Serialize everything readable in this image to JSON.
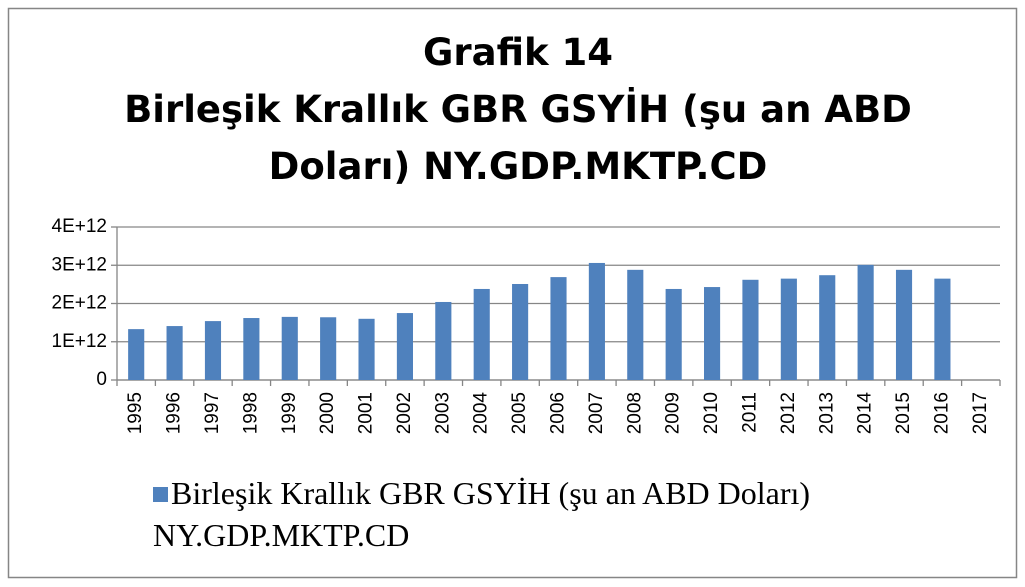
{
  "chart_data": {
    "type": "bar",
    "title": "Grafik 14",
    "subtitle": "Birleşik Krallık GBR GSYİH (şu an ABD Doları) NY.GDP.MKTP.CD",
    "categories": [
      "1995",
      "1996",
      "1997",
      "1998",
      "1999",
      "2000",
      "2001",
      "2002",
      "2003",
      "2004",
      "2005",
      "2006",
      "2007",
      "2008",
      "2009",
      "2010",
      "2011",
      "2012",
      "2013",
      "2014",
      "2015",
      "2016",
      "2017"
    ],
    "series": [
      {
        "name": "Birleşik Krallık GBR GSYİH (şu an ABD Doları) NY.GDP.MKTP.CD",
        "color": "#4f81bd",
        "values": [
          1330000000000.0,
          1410000000000.0,
          1540000000000.0,
          1620000000000.0,
          1650000000000.0,
          1640000000000.0,
          1600000000000.0,
          1750000000000.0,
          2040000000000.0,
          2380000000000.0,
          2510000000000.0,
          2690000000000.0,
          3060000000000.0,
          2880000000000.0,
          2380000000000.0,
          2430000000000.0,
          2620000000000.0,
          2650000000000.0,
          2740000000000.0,
          3010000000000.0,
          2880000000000.0,
          2650000000000.0,
          null
        ]
      }
    ],
    "ylim": [
      0,
      4000000000000.0
    ],
    "yticks": [
      0,
      {
        "value": 1000000000000.0,
        "label": "1E+12"
      },
      {
        "value": 2000000000000.0,
        "label": "2E+12"
      },
      {
        "value": 3000000000000.0,
        "label": "3E+12"
      },
      {
        "value": 4000000000000.0,
        "label": "4E+12"
      }
    ],
    "grid": true,
    "legend": "bottom"
  }
}
